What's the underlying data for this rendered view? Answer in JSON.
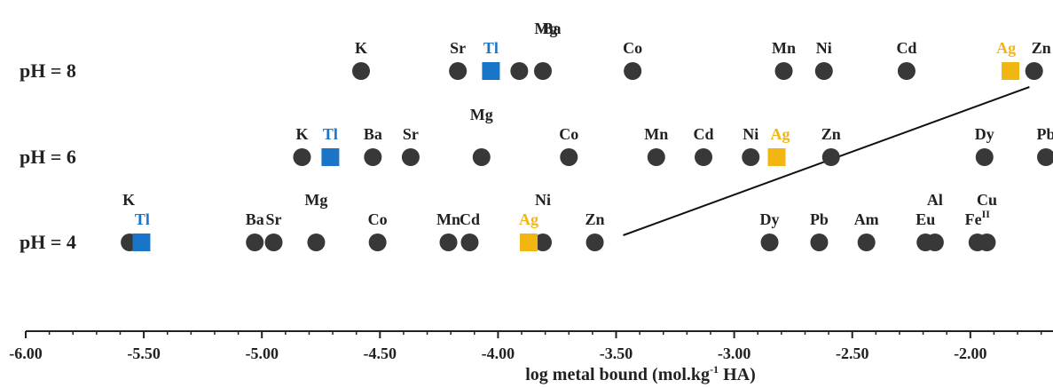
{
  "chart_data": {
    "type": "scatter",
    "title": "",
    "xlabel": "log metal bound (mol.kg",
    "xlabel_sup": "-1",
    "xlabel_tail": " HA)",
    "xlim": [
      -6.0,
      -1.65
    ],
    "xticks": [
      "-6.00",
      "-5.50",
      "-5.00",
      "-4.50",
      "-4.00",
      "-3.50",
      "-3.00",
      "-2.50",
      "-2.00"
    ],
    "grid": false,
    "colors": {
      "ion": "#383838",
      "tl": "#1a74c8",
      "ag": "#f2b613",
      "text": "#222222"
    },
    "rows": [
      {
        "label": "pH = 8",
        "points": [
          {
            "name": "K",
            "x": -4.58,
            "marker": "circle"
          },
          {
            "name": "Sr",
            "x": -4.17,
            "marker": "circle"
          },
          {
            "name": "Tl",
            "x": -4.03,
            "marker": "square"
          },
          {
            "name": "Mg",
            "x": -3.91,
            "marker": "circle"
          },
          {
            "name": "Ba",
            "x": -3.81,
            "marker": "circle"
          },
          {
            "name": "Co",
            "x": -3.43,
            "marker": "circle"
          },
          {
            "name": "Mn",
            "x": -2.79,
            "marker": "circle"
          },
          {
            "name": "Ni",
            "x": -2.62,
            "marker": "circle"
          },
          {
            "name": "Cd",
            "x": -2.27,
            "marker": "circle"
          },
          {
            "name": "Ag",
            "x": -1.83,
            "marker": "square"
          },
          {
            "name": "Zn",
            "x": -1.73,
            "marker": "circle"
          }
        ]
      },
      {
        "label": "pH = 6",
        "points": [
          {
            "name": "K",
            "x": -4.83,
            "marker": "circle"
          },
          {
            "name": "Tl",
            "x": -4.71,
            "marker": "square"
          },
          {
            "name": "Ba",
            "x": -4.53,
            "marker": "circle"
          },
          {
            "name": "Sr",
            "x": -4.37,
            "marker": "circle"
          },
          {
            "name": "Mg",
            "x": -4.07,
            "marker": "circle"
          },
          {
            "name": "Co",
            "x": -3.7,
            "marker": "circle"
          },
          {
            "name": "Mn",
            "x": -3.33,
            "marker": "circle"
          },
          {
            "name": "Cd",
            "x": -3.13,
            "marker": "circle"
          },
          {
            "name": "Ni",
            "x": -2.93,
            "marker": "circle"
          },
          {
            "name": "Ag",
            "x": -2.82,
            "marker": "square"
          },
          {
            "name": "Zn",
            "x": -2.59,
            "marker": "circle"
          },
          {
            "name": "Dy",
            "x": -1.94,
            "marker": "circle"
          },
          {
            "name": "Pb",
            "x": -1.68,
            "marker": "circle"
          }
        ]
      },
      {
        "label": "pH = 4",
        "points": [
          {
            "name": "K",
            "x": -5.56,
            "marker": "circle"
          },
          {
            "name": "Tl",
            "x": -5.51,
            "marker": "square"
          },
          {
            "name": "Ba",
            "x": -5.03,
            "marker": "circle"
          },
          {
            "name": "Sr",
            "x": -4.95,
            "marker": "circle"
          },
          {
            "name": "Mg",
            "x": -4.77,
            "marker": "circle"
          },
          {
            "name": "Co",
            "x": -4.51,
            "marker": "circle"
          },
          {
            "name": "Mn",
            "x": -4.21,
            "marker": "circle"
          },
          {
            "name": "Cd",
            "x": -4.12,
            "marker": "circle"
          },
          {
            "name": "Ni",
            "x": -3.81,
            "marker": "circle"
          },
          {
            "name": "Ag",
            "x": -3.87,
            "marker": "square"
          },
          {
            "name": "Zn",
            "x": -3.59,
            "marker": "circle"
          },
          {
            "name": "Dy",
            "x": -2.85,
            "marker": "circle"
          },
          {
            "name": "Pb",
            "x": -2.64,
            "marker": "circle"
          },
          {
            "name": "Am",
            "x": -2.44,
            "marker": "circle"
          },
          {
            "name": "Eu",
            "x": -2.19,
            "marker": "circle"
          },
          {
            "name": "Al",
            "x": -2.15,
            "marker": "circle"
          },
          {
            "name": "Fe",
            "label_sup": "II",
            "x": -1.97,
            "marker": "circle"
          },
          {
            "name": "Cu",
            "x": -1.93,
            "marker": "circle"
          }
        ]
      }
    ],
    "connector": {
      "from": {
        "row": "pH = 4",
        "x": -3.47
      },
      "to": {
        "row": "pH = 8",
        "x": -1.75
      }
    }
  }
}
